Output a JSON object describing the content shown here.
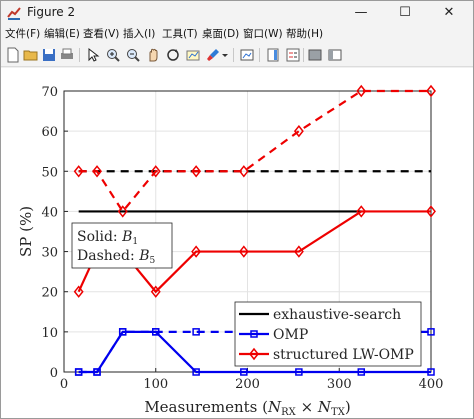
{
  "window": {
    "title": "Figure 2",
    "minimize": "—",
    "maximize": "☐",
    "close": "✕"
  },
  "menu": [
    "文件(F)",
    "编辑(E)",
    "查看(V)",
    "插入(I)",
    "工具(T)",
    "桌面(D)",
    "窗口(W)",
    "帮助(H)"
  ],
  "toolbar": [
    "new-figure-icon",
    "open-file-icon",
    "save-icon",
    "print-icon",
    "edit-pointer-icon",
    "zoom-in-icon",
    "zoom-out-icon",
    "pan-icon",
    "rotate-3d-icon",
    "data-cursor-icon",
    "brush-icon",
    "link-plot-icon",
    "insert-colorbar-icon",
    "insert-legend-icon",
    "hide-plot-tools-icon",
    "show-plot-tools-icon"
  ],
  "colors": {
    "black": "#000000",
    "blue": "#0000ee",
    "red": "#ee0000"
  },
  "chart_data": {
    "type": "line",
    "xlabel": "Measurements (N_RX × N_TX)",
    "xlabel_main": "Measurements (",
    "xlabel_nrx": "N",
    "xlabel_nrx_sub": "RX",
    "xlabel_times": " × ",
    "xlabel_ntx": "N",
    "xlabel_ntx_sub": "TX",
    "xlabel_close": ")",
    "ylabel": "SP (%)",
    "xlim": [
      0,
      400
    ],
    "ylim": [
      0,
      70
    ],
    "xticks": [
      0,
      100,
      200,
      300,
      400
    ],
    "yticks": [
      0,
      10,
      20,
      30,
      40,
      50,
      60,
      70
    ],
    "grid": true,
    "annotation": {
      "solid_label": "Solid: ",
      "solid_sym": "B",
      "solid_sub": "1",
      "dashed_label": "Dashed: ",
      "dashed_sym": "B",
      "dashed_sub": "5"
    },
    "legend": {
      "position": "bottom-right",
      "entries": [
        {
          "name": "exhaustive-search",
          "color": "#000000",
          "marker": "none"
        },
        {
          "name": "OMP",
          "color": "#0000ee",
          "marker": "square"
        },
        {
          "name": "structured LW-OMP",
          "color": "#ee0000",
          "marker": "diamond"
        }
      ]
    },
    "series": [
      {
        "name": "exhaustive-search",
        "style": "solid",
        "color": "#000000",
        "marker": "none",
        "x": [
          16,
          324
        ],
        "y": [
          40,
          40
        ]
      },
      {
        "name": "exhaustive-search",
        "style": "dashed",
        "color": "#000000",
        "marker": "none",
        "x": [
          16,
          400
        ],
        "y": [
          50,
          50
        ]
      },
      {
        "name": "OMP",
        "style": "solid",
        "color": "#0000ee",
        "marker": "square",
        "x": [
          16,
          36,
          64,
          100,
          144,
          196,
          256,
          324,
          400
        ],
        "y": [
          0,
          0,
          10,
          10,
          0,
          0,
          0,
          0,
          0
        ]
      },
      {
        "name": "OMP",
        "style": "dashed",
        "color": "#0000ee",
        "marker": "square",
        "x": [
          16,
          36,
          64,
          100,
          144,
          196,
          256,
          324,
          400
        ],
        "y": [
          0,
          0,
          10,
          10,
          10,
          10,
          10,
          10,
          10
        ]
      },
      {
        "name": "structured LW-OMP",
        "style": "solid",
        "color": "#ee0000",
        "marker": "diamond",
        "x": [
          16,
          36,
          64,
          100,
          144,
          196,
          256,
          324,
          400
        ],
        "y": [
          20,
          30,
          30,
          20,
          30,
          30,
          30,
          40,
          40
        ]
      },
      {
        "name": "structured LW-OMP",
        "style": "dashed",
        "color": "#ee0000",
        "marker": "diamond",
        "x": [
          16,
          36,
          64,
          100,
          144,
          196,
          256,
          324,
          400
        ],
        "y": [
          50,
          50,
          40,
          50,
          50,
          50,
          60,
          70,
          70
        ]
      }
    ]
  }
}
